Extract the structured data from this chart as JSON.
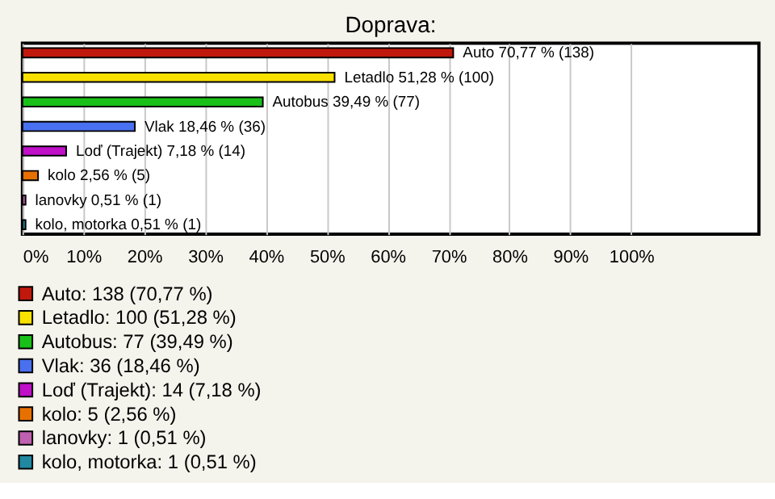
{
  "chart_data": {
    "type": "bar",
    "orientation": "horizontal",
    "title": "Doprava:",
    "categories": [
      null,
      null,
      null,
      null,
      null,
      null,
      null,
      null
    ],
    "series": [
      {
        "name": "Auto: 138 (70,77 %)",
        "color": "#c0180c",
        "values": [
          70.77,
          null,
          null,
          null,
          null,
          null,
          null,
          null
        ],
        "value_labels": [
          "Auto 70,77 % (138)",
          null,
          null,
          null,
          null,
          null,
          null,
          null
        ]
      },
      {
        "name": "Letadlo: 100 (51,28 %)",
        "color": "#f8e000",
        "values": [
          null,
          51.28,
          null,
          null,
          null,
          null,
          null,
          null
        ],
        "value_labels": [
          null,
          "Letadlo 51,28 % (100)",
          null,
          null,
          null,
          null,
          null,
          null
        ]
      },
      {
        "name": "Autobus: 77 (39,49 %)",
        "color": "#18c018",
        "values": [
          null,
          null,
          39.49,
          null,
          null,
          null,
          null,
          null
        ],
        "value_labels": [
          null,
          null,
          "Autobus 39,49 % (77)",
          null,
          null,
          null,
          null,
          null
        ]
      },
      {
        "name": "Vlak: 36 (18,46 %)",
        "color": "#4870f0",
        "values": [
          null,
          null,
          null,
          18.46,
          null,
          null,
          null,
          null
        ],
        "value_labels": [
          null,
          null,
          null,
          "Vlak 18,46 % (36)",
          null,
          null,
          null,
          null
        ]
      },
      {
        "name": "Loď (Trajekt): 14 (7,18 %)",
        "color": "#c010c8",
        "values": [
          null,
          null,
          null,
          null,
          7.18,
          null,
          null,
          null
        ],
        "value_labels": [
          null,
          null,
          null,
          null,
          "Loď (Trajekt) 7,18 % (14)",
          null,
          null,
          null
        ]
      },
      {
        "name": "kolo: 5 (2,56 %)",
        "color": "#e87000",
        "values": [
          null,
          null,
          null,
          null,
          null,
          2.56,
          null,
          null
        ],
        "value_labels": [
          null,
          null,
          null,
          null,
          null,
          "kolo 2,56 % (5)",
          null,
          null
        ]
      },
      {
        "name": "lanovky: 1 (0,51 %)",
        "color": "#c060b0",
        "values": [
          null,
          null,
          null,
          null,
          null,
          null,
          0.51,
          null
        ],
        "value_labels": [
          null,
          null,
          null,
          null,
          null,
          null,
          "lanovky 0,51 % (1)",
          null
        ]
      },
      {
        "name": "kolo, motorka: 1 (0,51 %)",
        "color": "#2088a0",
        "values": [
          null,
          null,
          null,
          null,
          null,
          null,
          null,
          0.51
        ],
        "value_labels": [
          null,
          null,
          null,
          null,
          null,
          null,
          null,
          "kolo, motorka 0,51 % (1)"
        ]
      }
    ],
    "xlim": [
      0,
      121
    ],
    "xticks": [
      {
        "value": 0,
        "label": "0%"
      },
      {
        "value": 10,
        "label": "10%"
      },
      {
        "value": 20,
        "label": "20%"
      },
      {
        "value": 30,
        "label": "30%"
      },
      {
        "value": 40,
        "label": "40%"
      },
      {
        "value": 50,
        "label": "50%"
      },
      {
        "value": 60,
        "label": "60%"
      },
      {
        "value": 70,
        "label": "70%"
      },
      {
        "value": 80,
        "label": "80%"
      },
      {
        "value": 90,
        "label": "90%"
      },
      {
        "value": 100,
        "label": "100%"
      }
    ],
    "grid": "x",
    "tick_labels": "x",
    "legend": "bottom"
  }
}
